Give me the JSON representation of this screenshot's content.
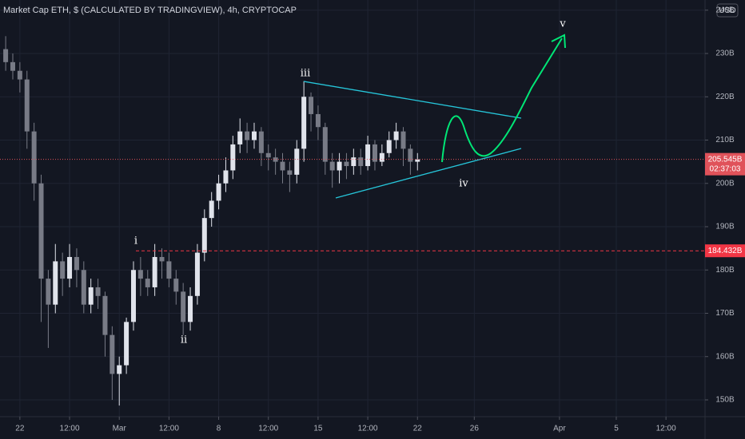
{
  "chart_data": {
    "type": "candlestick",
    "title": "Market Cap ETH, $ (CALCULATED BY TRADINGVIEW), 4h, CRYPTOCAP",
    "currency": "USD",
    "x": [
      -6,
      -3,
      0,
      3,
      6,
      9,
      12,
      15,
      18,
      21,
      24,
      27,
      30,
      33,
      36,
      39,
      42,
      45,
      48,
      51,
      54,
      57,
      60,
      63,
      66,
      69,
      72,
      75,
      78,
      81,
      84,
      87,
      90,
      93,
      96,
      99,
      102,
      105,
      108,
      111,
      114,
      117,
      120,
      123,
      126,
      129,
      132,
      135,
      138,
      141,
      144,
      147,
      150,
      153,
      156,
      159,
      162,
      165,
      168
    ],
    "open": [
      231,
      228,
      226,
      224,
      212,
      200,
      178,
      172,
      182,
      178,
      183,
      180,
      172,
      176,
      174,
      165,
      156,
      158,
      168,
      180,
      178,
      176,
      183,
      182,
      178,
      175,
      168,
      174,
      184,
      192,
      196,
      200,
      203,
      209,
      212,
      210,
      212,
      207,
      206,
      205,
      203,
      202,
      208,
      220,
      216,
      213,
      205,
      203,
      205,
      204,
      206,
      204,
      209,
      205,
      207,
      210,
      212,
      208,
      205
    ],
    "high": [
      234,
      230,
      228,
      226,
      214,
      202,
      180,
      186,
      184,
      186,
      185,
      182,
      178,
      178,
      175,
      167,
      160,
      169,
      182,
      183,
      180,
      186,
      185,
      184,
      180,
      177,
      176,
      186,
      194,
      198,
      202,
      206,
      211,
      215,
      214,
      214,
      213,
      209,
      208,
      207,
      205,
      210,
      223.6,
      221,
      218,
      214,
      207,
      207,
      207,
      208,
      208,
      211,
      210,
      209,
      212,
      214,
      213,
      209,
      207
    ],
    "low": [
      226,
      224,
      221,
      208,
      196,
      168,
      162,
      170,
      174,
      176,
      176,
      170,
      170,
      171,
      160,
      150,
      148.7,
      156,
      166,
      174,
      174,
      174,
      178,
      176,
      172,
      165,
      166,
      172,
      182,
      190,
      194,
      198,
      201,
      207,
      207,
      208,
      204,
      203,
      202,
      200,
      198,
      200,
      205,
      212,
      210,
      202,
      199,
      200,
      201,
      202,
      202,
      203,
      203,
      204,
      206,
      208,
      204,
      202,
      203
    ],
    "close": [
      228,
      226,
      224,
      212,
      200,
      178,
      172,
      182,
      178,
      183,
      180,
      172,
      176,
      174,
      165,
      156,
      158,
      168,
      180,
      178,
      176,
      183,
      182,
      178,
      175,
      168,
      174,
      184,
      192,
      196,
      200,
      203,
      209,
      212,
      210,
      212,
      207,
      206,
      205,
      203,
      202,
      208,
      220,
      216,
      213,
      205,
      203,
      205,
      204,
      206,
      204,
      209,
      205,
      207,
      210,
      212,
      208,
      205,
      205.545
    ],
    "up_color": "#e0e3eb",
    "down_color": "#787b86",
    "xlim": [
      -8.4,
      289.5
    ],
    "xticks": [
      {
        "value": 0,
        "label": "22"
      },
      {
        "value": 21,
        "label": "12:00"
      },
      {
        "value": 42,
        "label": "Mar"
      },
      {
        "value": 63,
        "label": "12:00"
      },
      {
        "value": 84,
        "label": "8"
      },
      {
        "value": 105,
        "label": "12:00"
      },
      {
        "value": 126,
        "label": "15"
      },
      {
        "value": 147,
        "label": "12:00"
      },
      {
        "value": 168,
        "label": "22"
      },
      {
        "value": 192,
        "label": "26"
      },
      {
        "value": 228,
        "label": "Apr"
      },
      {
        "value": 252,
        "label": "5"
      },
      {
        "value": 273,
        "label": "12:00"
      }
    ],
    "ylim": [
      146.13,
      242.35
    ],
    "yticks": [
      {
        "value": 150,
        "label": "150B"
      },
      {
        "value": 160,
        "label": "160B"
      },
      {
        "value": 170,
        "label": "170B"
      },
      {
        "value": 180,
        "label": "180B"
      },
      {
        "value": 190,
        "label": "190B"
      },
      {
        "value": 200,
        "label": "200B"
      },
      {
        "value": 210,
        "label": "210B"
      },
      {
        "value": 220,
        "label": "220B"
      },
      {
        "value": 230,
        "label": "230B"
      },
      {
        "value": 240,
        "label": "240B"
      }
    ],
    "grid": true,
    "level": {
      "value": 184.432,
      "label": "184.432B",
      "color": "#f23645"
    },
    "last_price": {
      "value": 205.545,
      "label": "205.545B",
      "countdown": "02:37:03",
      "color": "#e0525a"
    },
    "annotations": [
      "i",
      "ii",
      "iii",
      "iv",
      "v"
    ]
  }
}
